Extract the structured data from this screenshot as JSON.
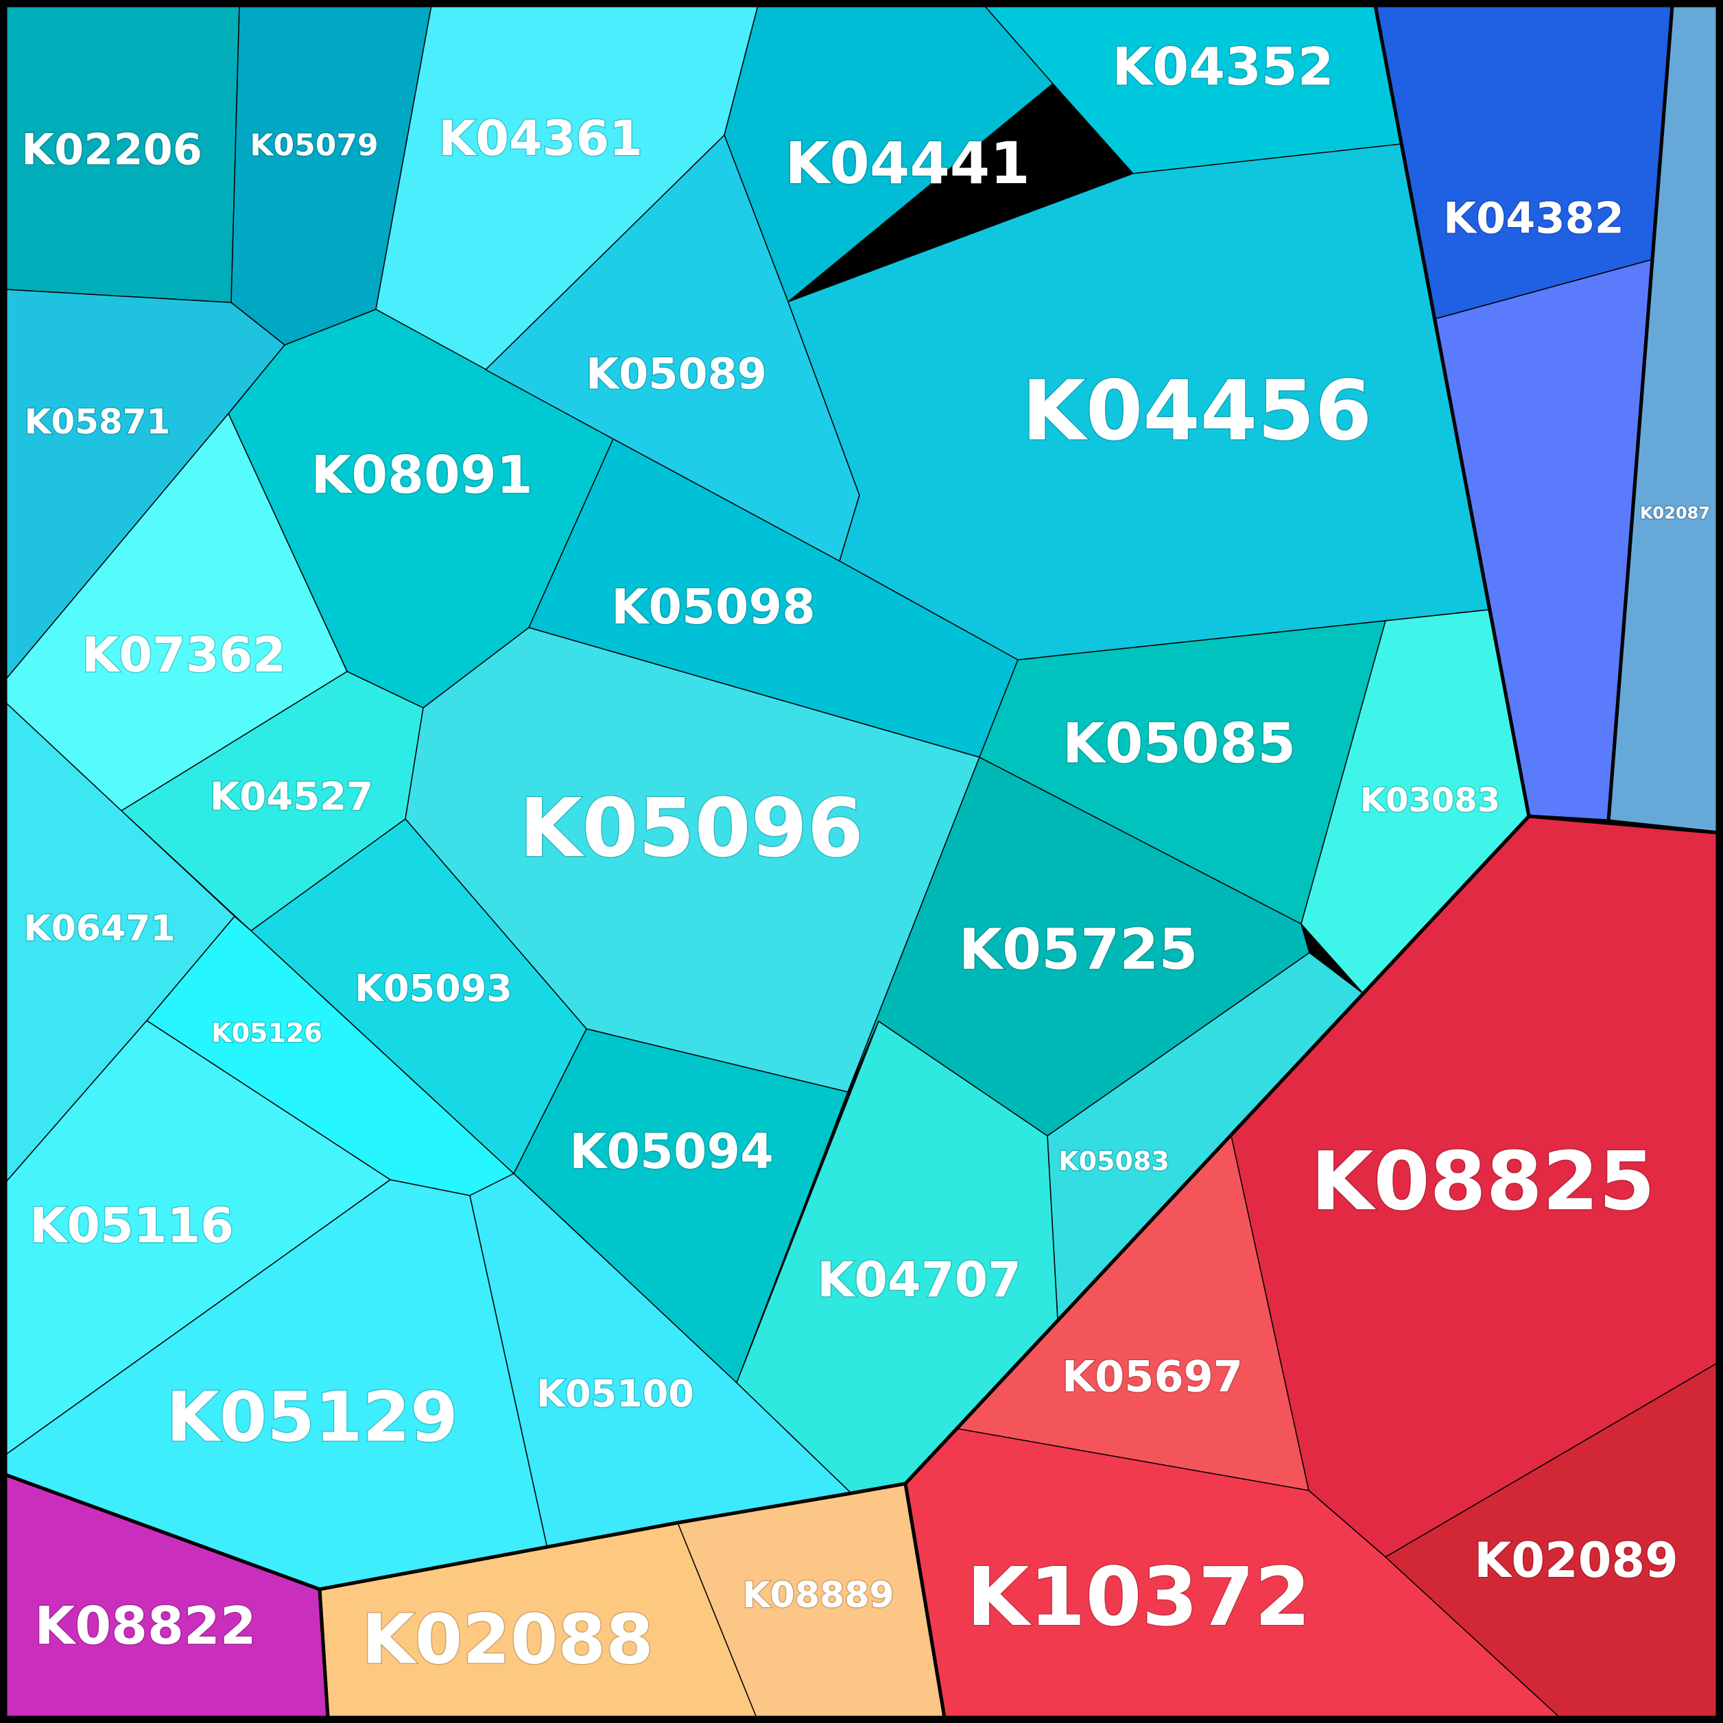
{
  "chart_data": {
    "type": "voronoi-treemap",
    "title": "",
    "groups": [
      {
        "color": "#1fc7dd",
        "cells": [
          {
            "label": "K02206",
            "value": 4,
            "color": "#00adb9"
          },
          {
            "label": "K05079",
            "value": 2,
            "color": "#00a8c4"
          },
          {
            "label": "K04361",
            "value": 4,
            "color": "#4aeefc"
          },
          {
            "label": "K04441",
            "value": 7,
            "color": "#00bcd4"
          },
          {
            "label": "K04352",
            "value": 4,
            "color": "#00c8dc"
          },
          {
            "label": "K05871",
            "value": 2,
            "color": "#1fc3e0"
          },
          {
            "label": "K08091",
            "value": 5,
            "color": "#00c9d1"
          },
          {
            "label": "K05089",
            "value": 4,
            "color": "#20cde8"
          },
          {
            "label": "K04456",
            "value": 12,
            "color": "#10c6de"
          },
          {
            "label": "K07362",
            "value": 4,
            "color": "#56fcfc"
          },
          {
            "label": "K05098",
            "value": 4,
            "color": "#00c1d6"
          },
          {
            "label": "K04527",
            "value": 3,
            "color": "#2eebe6"
          },
          {
            "label": "K05096",
            "value": 10,
            "color": "#3de0e9"
          },
          {
            "label": "K05085",
            "value": 5,
            "color": "#00c3bd"
          },
          {
            "label": "K03083",
            "value": 2,
            "color": "#3ff5ea"
          },
          {
            "label": "K06471",
            "value": 3,
            "color": "#3ce6f3"
          },
          {
            "label": "K05725",
            "value": 6,
            "color": "#00b8b6"
          },
          {
            "label": "K05093",
            "value": 3,
            "color": "#17d9e6"
          },
          {
            "label": "K05126",
            "value": 1,
            "color": "#26f6ff"
          },
          {
            "label": "K05094",
            "value": 4,
            "color": "#00c6cc"
          },
          {
            "label": "K05083",
            "value": 1,
            "color": "#34dde2"
          },
          {
            "label": "K05116",
            "value": 4,
            "color": "#46f4fd"
          },
          {
            "label": "K04707",
            "value": 4,
            "color": "#2fe8e0"
          },
          {
            "label": "K05129",
            "value": 8,
            "color": "#3eeefc"
          },
          {
            "label": "K05100",
            "value": 3,
            "color": "#3ce9fd"
          }
        ]
      },
      {
        "color": "#3a63e8",
        "cells": [
          {
            "label": "K04382",
            "value": 3,
            "color": "#2060e3"
          },
          {
            "label": "",
            "value": 2,
            "color": "#5a7bfc"
          }
        ]
      },
      {
        "color": "#6aa9d6",
        "cells": [
          {
            "label": "K02087",
            "value": 1,
            "color": "#66a9d8"
          }
        ]
      },
      {
        "color": "#e3293f",
        "cells": [
          {
            "label": "K08825",
            "value": 12,
            "color": "#e22a44"
          },
          {
            "label": "K05697",
            "value": 4,
            "color": "#f4555a"
          },
          {
            "label": "K10372",
            "value": 10,
            "color": "#f23a4f"
          },
          {
            "label": "K02089",
            "value": 5,
            "color": "#d22835"
          }
        ]
      },
      {
        "color": "#fbc480",
        "cells": [
          {
            "label": "K02088",
            "value": 8,
            "color": "#fdc981"
          },
          {
            "label": "K08889",
            "value": 3,
            "color": "#fbc686"
          }
        ]
      },
      {
        "color": "#c92fbc",
        "cells": [
          {
            "label": "K08822",
            "value": 4,
            "color": "#c92fbc"
          }
        ]
      }
    ]
  }
}
